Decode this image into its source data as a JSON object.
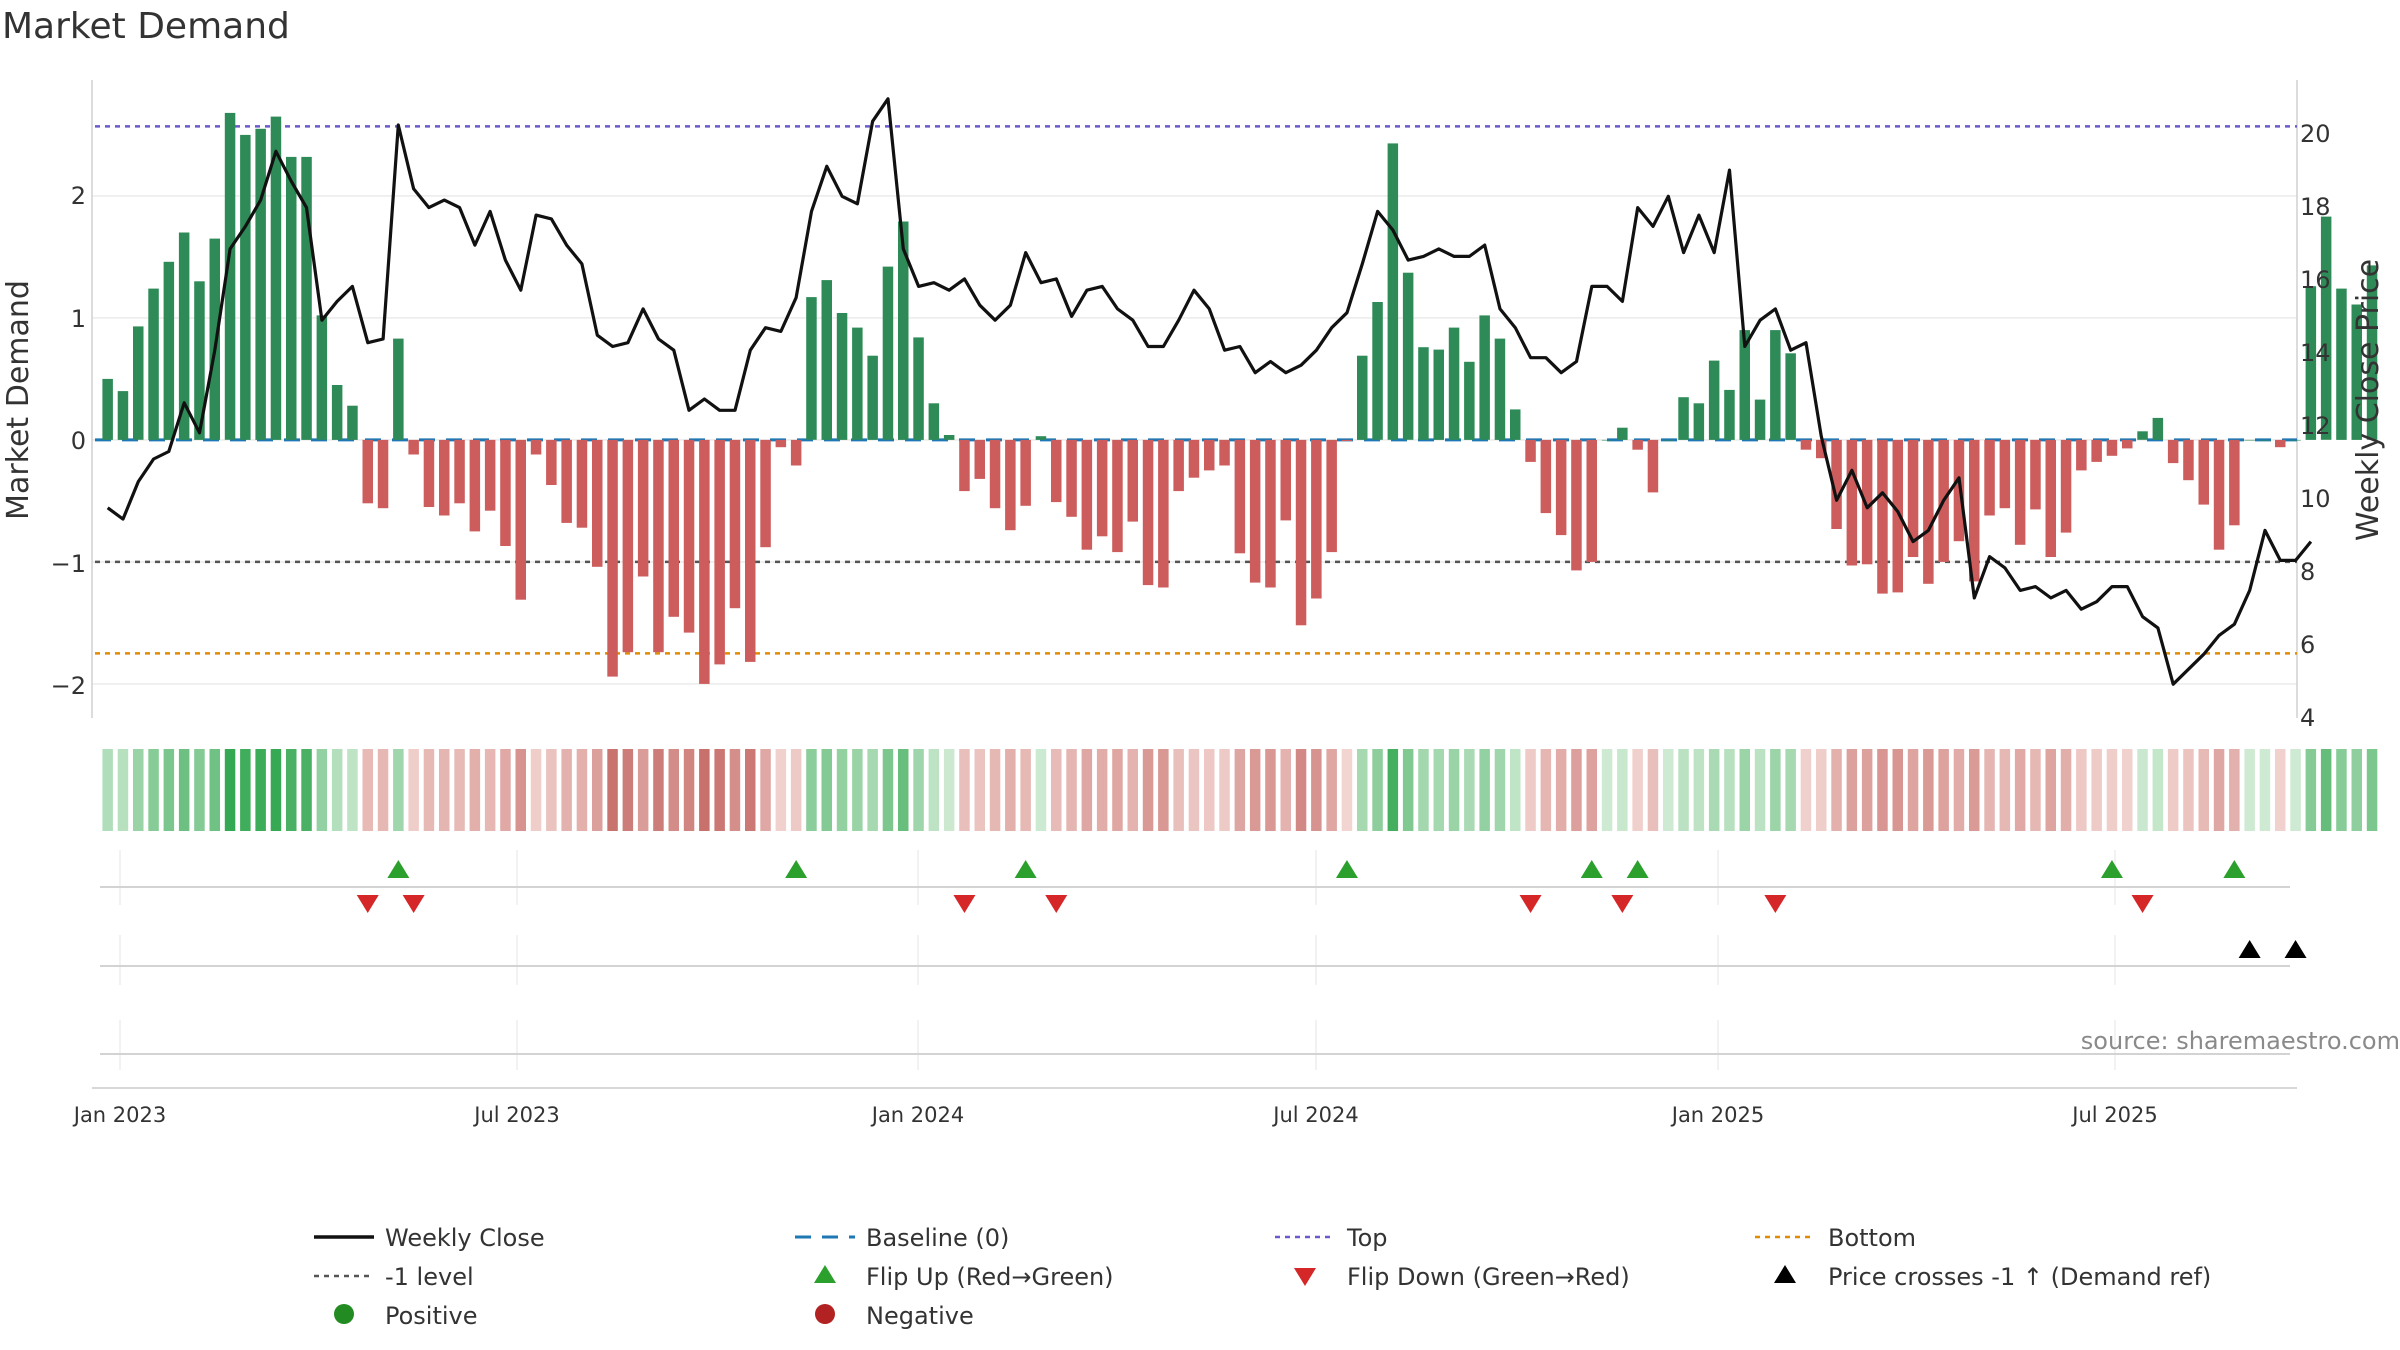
{
  "chart_data": {
    "type": "bar",
    "title": "Market Demand",
    "ylabel": "Market Demand",
    "y2label": "Weekly Close Price",
    "ylim": [
      -2.28,
      2.95
    ],
    "y2lim": [
      4,
      21
    ],
    "yticks": [
      "2",
      "1",
      "0",
      "−1",
      "−2"
    ],
    "y2ticks": [
      "20",
      "18",
      "16",
      "14",
      "12",
      "10",
      "8",
      "6",
      "4"
    ],
    "x_start": "2023-01-02",
    "x_end": "2025-10-27",
    "xticks": [
      "Jan 2023",
      "Jul 2023",
      "Jan 2024",
      "Jul 2024",
      "Jan 2025",
      "Jul 2025"
    ],
    "reference_lines": {
      "top": 2.57,
      "minus_one": -1,
      "bottom": -1.75,
      "baseline": 0
    },
    "series": [
      {
        "name": "Market Demand",
        "values": [
          0.5,
          0.4,
          0.93,
          1.24,
          1.46,
          1.7,
          1.3,
          1.65,
          2.68,
          2.5,
          2.55,
          2.65,
          2.32,
          2.32,
          1.02,
          0.45,
          0.28,
          -0.52,
          -0.56,
          0.83,
          -0.12,
          -0.55,
          -0.62,
          -0.52,
          -0.75,
          -0.58,
          -0.87,
          -1.31,
          -0.12,
          -0.37,
          -0.68,
          -0.72,
          -1.04,
          -1.94,
          -1.74,
          -1.12,
          -1.74,
          -1.45,
          -1.58,
          -2.0,
          -1.84,
          -1.38,
          -1.82,
          -0.88,
          -0.06,
          -0.21,
          1.17,
          1.31,
          1.04,
          0.92,
          0.69,
          1.42,
          1.79,
          0.84,
          0.3,
          0.04,
          -0.42,
          -0.32,
          -0.56,
          -0.74,
          -0.54,
          0.03,
          -0.51,
          -0.63,
          -0.9,
          -0.79,
          -0.92,
          -0.67,
          -1.19,
          -1.21,
          -0.42,
          -0.31,
          -0.25,
          -0.21,
          -0.93,
          -1.17,
          -1.21,
          -0.66,
          -1.52,
          -1.3,
          -0.92,
          -0.01,
          0.69,
          1.13,
          2.43,
          1.37,
          0.76,
          0.74,
          0.92,
          0.64,
          1.02,
          0.83,
          0.25,
          -0.18,
          -0.6,
          -0.78,
          -1.07,
          -1.0,
          0.0,
          0.1,
          -0.08,
          -0.43,
          0.0,
          0.35,
          0.3,
          0.65,
          0.41,
          0.9,
          0.33,
          0.9,
          0.71,
          -0.08,
          -0.15,
          -0.73,
          -1.03,
          -1.02,
          -1.26,
          -1.25,
          -0.96,
          -1.18,
          -1.0,
          -0.83,
          -1.16,
          -0.62,
          -0.56,
          -0.86,
          -0.57,
          -0.96,
          -0.76,
          -0.25,
          -0.18,
          -0.13,
          -0.07,
          0.07,
          0.18,
          -0.19,
          -0.33,
          -0.53,
          -0.9,
          -0.7,
          0.0,
          0.0,
          -0.06,
          0.0,
          1.26,
          1.83,
          1.24,
          1.11,
          1.43
        ]
      },
      {
        "name": "Weekly Close",
        "values": [
          9.6,
          9.3,
          10.3,
          10.9,
          11.1,
          12.4,
          11.6,
          13.8,
          16.5,
          17.1,
          17.8,
          19.1,
          18.3,
          17.6,
          14.6,
          15.1,
          15.5,
          14.0,
          14.1,
          19.8,
          18.1,
          17.6,
          17.8,
          17.6,
          16.6,
          17.5,
          16.2,
          15.4,
          17.4,
          17.3,
          16.6,
          16.1,
          14.2,
          13.9,
          14.0,
          14.9,
          14.1,
          13.8,
          12.2,
          12.5,
          12.2,
          12.2,
          13.8,
          14.4,
          14.3,
          15.2,
          17.5,
          18.7,
          17.9,
          17.7,
          19.9,
          20.5,
          16.5,
          15.5,
          15.6,
          15.4,
          15.7,
          15.0,
          14.6,
          15.0,
          16.4,
          15.6,
          15.7,
          14.7,
          15.4,
          15.5,
          14.9,
          14.6,
          13.9,
          13.9,
          14.6,
          15.4,
          14.9,
          13.8,
          13.9,
          13.2,
          13.5,
          13.2,
          13.4,
          13.8,
          14.4,
          14.8,
          16.1,
          17.5,
          17.0,
          16.2,
          16.3,
          16.5,
          16.3,
          16.3,
          16.6,
          14.9,
          14.4,
          13.6,
          13.6,
          13.2,
          13.5,
          15.5,
          15.5,
          15.1,
          17.6,
          17.1,
          17.9,
          16.4,
          17.4,
          16.4,
          18.6,
          13.9,
          14.6,
          14.9,
          13.8,
          14.0,
          11.5,
          9.8,
          10.6,
          9.6,
          10.0,
          9.5,
          8.7,
          9.0,
          9.8,
          10.4,
          7.2,
          8.3,
          8.0,
          7.4,
          7.5,
          7.2,
          7.4,
          6.9,
          7.1,
          7.5,
          7.5,
          6.7,
          6.4,
          4.9,
          5.3,
          5.7,
          6.2,
          6.5,
          7.4,
          9.0,
          8.2,
          8.2,
          8.7
        ]
      }
    ],
    "heatmap_strip": "Market Demand intensity (green = positive, red = negative)",
    "flip_up_weeks": [
      19,
      45,
      60,
      81,
      97,
      100,
      131,
      139
    ],
    "flip_down_weeks": [
      17,
      20,
      56,
      62,
      93,
      99,
      109,
      133
    ],
    "price_cross_weeks": [
      140,
      143
    ]
  },
  "legend": {
    "weekly_close": "Weekly Close",
    "baseline": "Baseline (0)",
    "top": "Top",
    "bottom": "Bottom",
    "minus_one_level": "-1 level",
    "flip_up": "Flip Up (Red→Green)",
    "flip_down": "Flip Down (Green→Red)",
    "price_cross": "Price crosses -1 ↑ (Demand ref)",
    "positive": "Positive",
    "negative": "Negative"
  },
  "source": "source: sharemaestro.com",
  "colors": {
    "positive_bar": "#2e8b57",
    "negative_bar": "#cd5c5c",
    "price_line": "#111111",
    "baseline": "#1f77b4",
    "top_line": "#6a5acd",
    "bottom_line": "#e08c00",
    "minus_one_line": "#555555",
    "flip_up": "#2ca02c",
    "flip_down": "#d62728",
    "price_cross": "#000000",
    "positive_dot": "#228b22",
    "negative_dot": "#b22222"
  }
}
